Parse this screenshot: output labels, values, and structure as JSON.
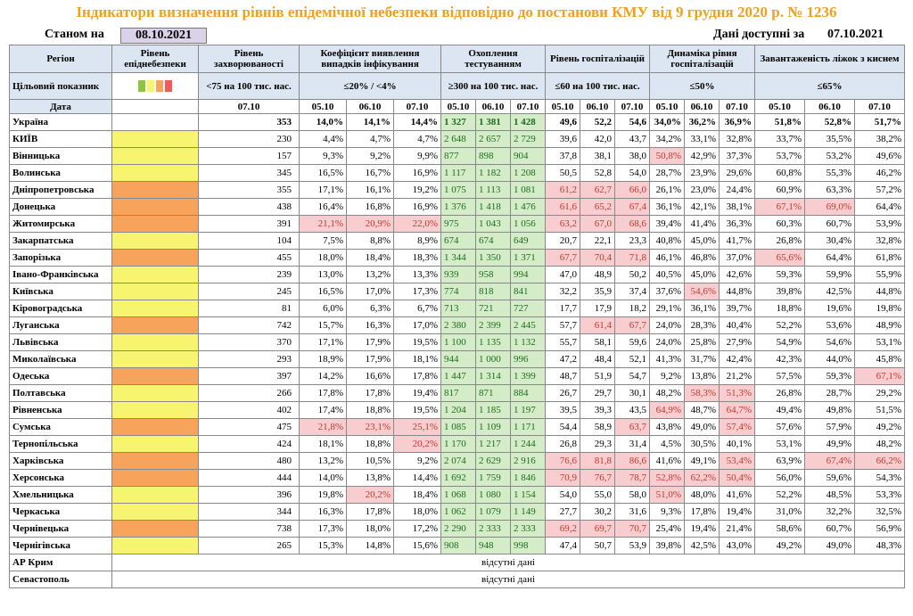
{
  "title": "Індикатори визначення рівнів епідемічної небезпеки відповідно до постанови КМУ від 9 грудня 2020 р. № 1236",
  "as_of_label": "Станом на",
  "as_of": "08.10.2021",
  "available_label": "Дані доступні за",
  "available": "07.10.2021",
  "header": {
    "region": "Регіон",
    "level": "Рівень епіднебезпеки",
    "incidence": "Рівень захворюваності",
    "detection": "Коефіцієнт виявлення випадків інфікування",
    "testing": "Охоплення тестуванням",
    "hospitalization": "Рівень госпіталізацій",
    "dynamics": "Динаміка рівня госпіталізацій",
    "beds": "Завантаженість ліжок з киснем"
  },
  "target": {
    "label": "Цільовий показник",
    "incidence": "<75 на 100 тис. нас.",
    "detection": "≤20% / <4%",
    "testing": "≥300 на 100 тис. нас.",
    "hospitalization": "≤60 на 100 тис. нас.",
    "dynamics": "≤50%",
    "beds": "≤65%"
  },
  "level_colors": [
    "#8cc63f",
    "#f7f56f",
    "#f7a35c",
    "#f05a5a"
  ],
  "date_label": "Дата",
  "incidence_date": "07.10",
  "dates": [
    "05.10",
    "06.10",
    "07.10"
  ],
  "rows": [
    {
      "region": "Україна",
      "values": [
        "353",
        "14,0%",
        "14,1%",
        "14,4%",
        "1 327",
        "1 381",
        "1 428",
        "49,6",
        "52,2",
        "54,6",
        "34,0%",
        "36,2%",
        "36,9%",
        "51,8%",
        "52,8%",
        "51,7%"
      ],
      "red": []
    },
    {
      "region": "КИЇВ",
      "level": "#f7f56f",
      "values": [
        "230",
        "4,4%",
        "4,7%",
        "4,7%",
        "2 648",
        "2 657",
        "2 729",
        "39,6",
        "42,0",
        "43,7",
        "34,2%",
        "33,1%",
        "32,8%",
        "33,7%",
        "35,5%",
        "38,2%"
      ],
      "red": []
    },
    {
      "region": "Вінницька",
      "level": "#f7f56f",
      "values": [
        "157",
        "9,3%",
        "9,2%",
        "9,9%",
        "877",
        "898",
        "904",
        "37,8",
        "38,1",
        "38,0",
        "50,8%",
        "42,9%",
        "37,3%",
        "53,7%",
        "53,2%",
        "49,6%"
      ],
      "red": [
        10
      ]
    },
    {
      "region": "Волинська",
      "level": "#f7f56f",
      "values": [
        "345",
        "16,5%",
        "16,7%",
        "16,9%",
        "1 117",
        "1 182",
        "1 208",
        "50,5",
        "52,8",
        "54,0",
        "28,7%",
        "23,9%",
        "29,6%",
        "60,8%",
        "55,3%",
        "46,2%"
      ],
      "red": []
    },
    {
      "region": "Дніпропетровська",
      "level": "#f7a35c",
      "values": [
        "355",
        "17,1%",
        "16,1%",
        "19,2%",
        "1 075",
        "1 113",
        "1 081",
        "61,2",
        "62,7",
        "66,0",
        "26,1%",
        "23,0%",
        "24,4%",
        "60,9%",
        "63,3%",
        "57,2%"
      ],
      "red": [
        7,
        8,
        9
      ]
    },
    {
      "region": "Донецька",
      "level": "#f7a35c",
      "values": [
        "438",
        "16,4%",
        "16,8%",
        "16,9%",
        "1 376",
        "1 418",
        "1 476",
        "61,6",
        "65,2",
        "67,4",
        "36,1%",
        "42,1%",
        "38,1%",
        "67,1%",
        "69,0%",
        "64,4%"
      ],
      "red": [
        7,
        8,
        9,
        13,
        14
      ]
    },
    {
      "region": "Житомирська",
      "level": "#f7a35c",
      "values": [
        "391",
        "21,1%",
        "20,9%",
        "22,0%",
        "975",
        "1 043",
        "1 056",
        "63,2",
        "67,0",
        "68,6",
        "39,4%",
        "41,4%",
        "36,3%",
        "60,3%",
        "60,7%",
        "53,9%"
      ],
      "red": [
        1,
        2,
        3,
        7,
        8,
        9
      ]
    },
    {
      "region": "Закарпатська",
      "level": "#f7f56f",
      "values": [
        "104",
        "7,5%",
        "8,8%",
        "8,9%",
        "674",
        "674",
        "649",
        "20,7",
        "22,1",
        "23,3",
        "40,8%",
        "45,0%",
        "41,7%",
        "26,8%",
        "30,4%",
        "32,8%"
      ],
      "red": []
    },
    {
      "region": "Запорізька",
      "level": "#f7a35c",
      "values": [
        "455",
        "18,0%",
        "18,4%",
        "18,3%",
        "1 344",
        "1 350",
        "1 371",
        "67,7",
        "70,4",
        "71,8",
        "46,1%",
        "46,8%",
        "37,0%",
        "65,6%",
        "64,4%",
        "61,8%"
      ],
      "red": [
        7,
        8,
        9,
        13
      ]
    },
    {
      "region": "Івано-Франківська",
      "level": "#f7f56f",
      "values": [
        "239",
        "13,0%",
        "13,2%",
        "13,3%",
        "939",
        "958",
        "994",
        "47,0",
        "48,9",
        "50,2",
        "40,5%",
        "45,0%",
        "42,6%",
        "59,3%",
        "59,9%",
        "55,9%"
      ],
      "red": []
    },
    {
      "region": "Київська",
      "level": "#f7f56f",
      "values": [
        "245",
        "16,5%",
        "17,0%",
        "17,3%",
        "774",
        "818",
        "841",
        "32,2",
        "35,9",
        "37,4",
        "37,6%",
        "54,6%",
        "44,8%",
        "39,8%",
        "42,5%",
        "44,8%"
      ],
      "red": [
        11
      ]
    },
    {
      "region": "Кіровоградська",
      "level": "#f7f56f",
      "values": [
        "81",
        "6,0%",
        "6,3%",
        "6,7%",
        "713",
        "721",
        "727",
        "17,7",
        "17,9",
        "18,2",
        "29,1%",
        "36,1%",
        "39,7%",
        "18,8%",
        "19,6%",
        "19,8%"
      ],
      "red": []
    },
    {
      "region": "Луганська",
      "level": "#f7a35c",
      "values": [
        "742",
        "15,7%",
        "16,3%",
        "17,0%",
        "2 380",
        "2 399",
        "2 445",
        "57,7",
        "61,4",
        "67,7",
        "24,0%",
        "28,3%",
        "40,4%",
        "52,2%",
        "53,6%",
        "48,9%"
      ],
      "red": [
        8,
        9
      ]
    },
    {
      "region": "Львівська",
      "level": "#f7f56f",
      "values": [
        "370",
        "17,1%",
        "17,9%",
        "19,5%",
        "1 100",
        "1 135",
        "1 132",
        "55,7",
        "58,1",
        "59,6",
        "24,0%",
        "25,8%",
        "27,9%",
        "54,9%",
        "54,6%",
        "53,1%"
      ],
      "red": []
    },
    {
      "region": "Миколаївська",
      "level": "#f7f56f",
      "values": [
        "293",
        "18,9%",
        "17,9%",
        "18,1%",
        "944",
        "1 000",
        "996",
        "47,2",
        "48,4",
        "52,1",
        "41,3%",
        "31,7%",
        "42,4%",
        "42,3%",
        "44,0%",
        "45,8%"
      ],
      "red": []
    },
    {
      "region": "Одеська",
      "level": "#f7a35c",
      "values": [
        "397",
        "14,2%",
        "16,6%",
        "17,8%",
        "1 447",
        "1 314",
        "1 399",
        "48,7",
        "51,9",
        "54,7",
        "9,2%",
        "13,8%",
        "21,2%",
        "57,5%",
        "59,3%",
        "67,1%"
      ],
      "red": [
        15
      ]
    },
    {
      "region": "Полтавська",
      "level": "#f7f56f",
      "values": [
        "266",
        "17,8%",
        "17,8%",
        "19,4%",
        "817",
        "871",
        "884",
        "26,7",
        "29,7",
        "30,1",
        "48,2%",
        "58,3%",
        "51,3%",
        "26,8%",
        "28,7%",
        "29,2%"
      ],
      "red": [
        11,
        12
      ]
    },
    {
      "region": "Рівненська",
      "level": "#f7f56f",
      "values": [
        "402",
        "17,4%",
        "18,8%",
        "19,5%",
        "1 204",
        "1 185",
        "1 197",
        "39,5",
        "39,3",
        "43,5",
        "64,9%",
        "48,7%",
        "64,7%",
        "49,4%",
        "49,8%",
        "51,5%"
      ],
      "red": [
        10,
        12
      ]
    },
    {
      "region": "Сумська",
      "level": "#f7a35c",
      "values": [
        "475",
        "21,8%",
        "23,1%",
        "25,1%",
        "1 085",
        "1 109",
        "1 171",
        "54,4",
        "58,9",
        "63,7",
        "43,8%",
        "49,0%",
        "57,4%",
        "57,6%",
        "57,9%",
        "49,2%"
      ],
      "red": [
        1,
        2,
        3,
        9,
        12
      ]
    },
    {
      "region": "Тернопільська",
      "level": "#f7f56f",
      "values": [
        "424",
        "18,1%",
        "18,8%",
        "20,2%",
        "1 170",
        "1 217",
        "1 244",
        "26,8",
        "29,3",
        "31,4",
        "4,5%",
        "30,5%",
        "40,1%",
        "53,1%",
        "49,9%",
        "48,2%"
      ],
      "red": [
        3
      ]
    },
    {
      "region": "Харківська",
      "level": "#f7a35c",
      "values": [
        "480",
        "13,2%",
        "10,5%",
        "9,2%",
        "2 074",
        "2 629",
        "2 916",
        "76,6",
        "81,8",
        "86,6",
        "41,6%",
        "49,1%",
        "53,4%",
        "63,9%",
        "67,4%",
        "66,2%"
      ],
      "red": [
        7,
        8,
        9,
        12,
        14,
        15
      ]
    },
    {
      "region": "Херсонська",
      "level": "#f7a35c",
      "values": [
        "444",
        "14,0%",
        "13,8%",
        "14,4%",
        "1 692",
        "1 759",
        "1 846",
        "70,9",
        "76,7",
        "78,7",
        "52,8%",
        "62,2%",
        "50,4%",
        "56,0%",
        "59,6%",
        "54,3%"
      ],
      "red": [
        7,
        8,
        9,
        10,
        11,
        12
      ]
    },
    {
      "region": "Хмельницька",
      "level": "#f7f56f",
      "values": [
        "396",
        "19,8%",
        "20,2%",
        "18,4%",
        "1 068",
        "1 080",
        "1 154",
        "54,0",
        "55,0",
        "58,0",
        "51,0%",
        "48,0%",
        "41,6%",
        "52,2%",
        "48,5%",
        "53,3%"
      ],
      "red": [
        2,
        10
      ]
    },
    {
      "region": "Черкаська",
      "level": "#f7f56f",
      "values": [
        "344",
        "16,3%",
        "17,8%",
        "18,0%",
        "1 062",
        "1 079",
        "1 149",
        "27,7",
        "30,2",
        "31,6",
        "9,3%",
        "17,8%",
        "19,4%",
        "31,0%",
        "32,2%",
        "32,5%"
      ],
      "red": []
    },
    {
      "region": "Чернівецька",
      "level": "#f7a35c",
      "values": [
        "738",
        "17,3%",
        "18,0%",
        "17,2%",
        "2 290",
        "2 333",
        "2 333",
        "69,2",
        "69,7",
        "70,7",
        "25,4%",
        "19,4%",
        "21,4%",
        "58,6%",
        "60,7%",
        "56,9%"
      ],
      "red": [
        7,
        8,
        9
      ]
    },
    {
      "region": "Чернігівська",
      "level": "#f7f56f",
      "values": [
        "265",
        "15,3%",
        "14,8%",
        "15,6%",
        "908",
        "948",
        "998",
        "47,4",
        "50,7",
        "53,9",
        "39,8%",
        "42,5%",
        "43,0%",
        "49,2%",
        "49,0%",
        "48,3%"
      ],
      "red": []
    },
    {
      "region": "АР Крим",
      "note": "відсутні дані"
    },
    {
      "region": "Севастополь",
      "note": "відсутні дані"
    }
  ]
}
